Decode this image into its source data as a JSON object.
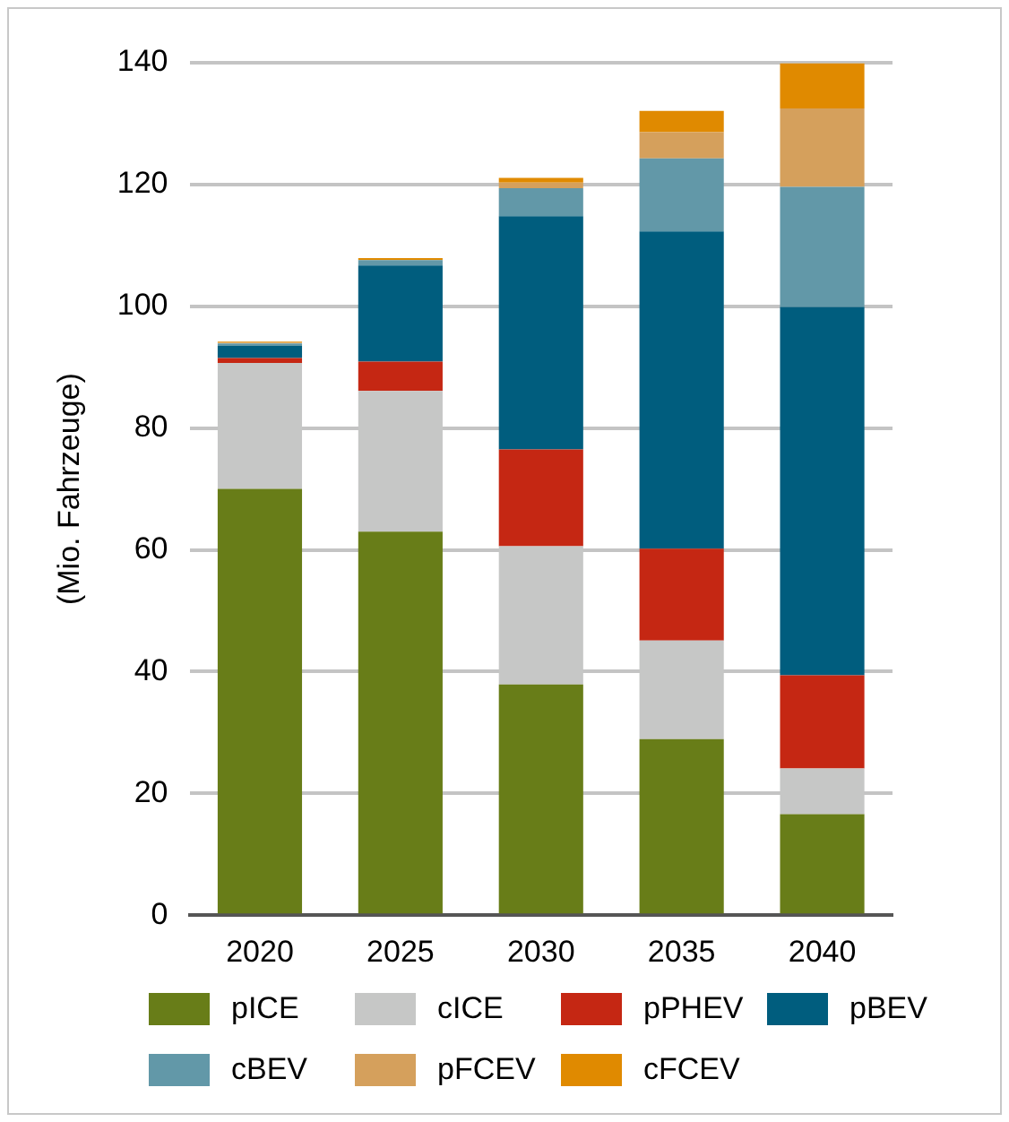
{
  "chart_data": {
    "type": "bar",
    "stacked": true,
    "ylabel": "(Mio. Fahrzeuge)",
    "categories": [
      "2020",
      "2025",
      "2030",
      "2035",
      "2040"
    ],
    "ylim": [
      0,
      140
    ],
    "yticks": [
      0,
      20,
      40,
      60,
      80,
      100,
      120,
      140
    ],
    "grid": "y",
    "legend": "bottom",
    "series": [
      {
        "name": "pICE",
        "color": "#687d18",
        "values": [
          70,
          63,
          37.9,
          28.9,
          16.6
        ]
      },
      {
        "name": "cICE",
        "color": "#c6c7c6",
        "values": [
          20.7,
          23.1,
          22.7,
          16.2,
          7.5
        ]
      },
      {
        "name": "pPHEV",
        "color": "#c52713",
        "values": [
          0.8,
          4.8,
          15.9,
          15.1,
          15.3
        ]
      },
      {
        "name": "pBEV",
        "color": "#005d7e",
        "values": [
          2.0,
          15.8,
          38.3,
          52.1,
          60.5
        ]
      },
      {
        "name": "cBEV",
        "color": "#6298a8",
        "values": [
          0.4,
          0.9,
          4.6,
          12.0,
          19.7
        ]
      },
      {
        "name": "pFCEV",
        "color": "#d5a05c",
        "values": [
          0.1,
          null,
          0.9,
          4.3,
          12.9
        ]
      },
      {
        "name": "cFCEV",
        "color": "#e08a00",
        "values": [
          0.2,
          0.3,
          0.8,
          3.5,
          7.4
        ]
      }
    ]
  }
}
